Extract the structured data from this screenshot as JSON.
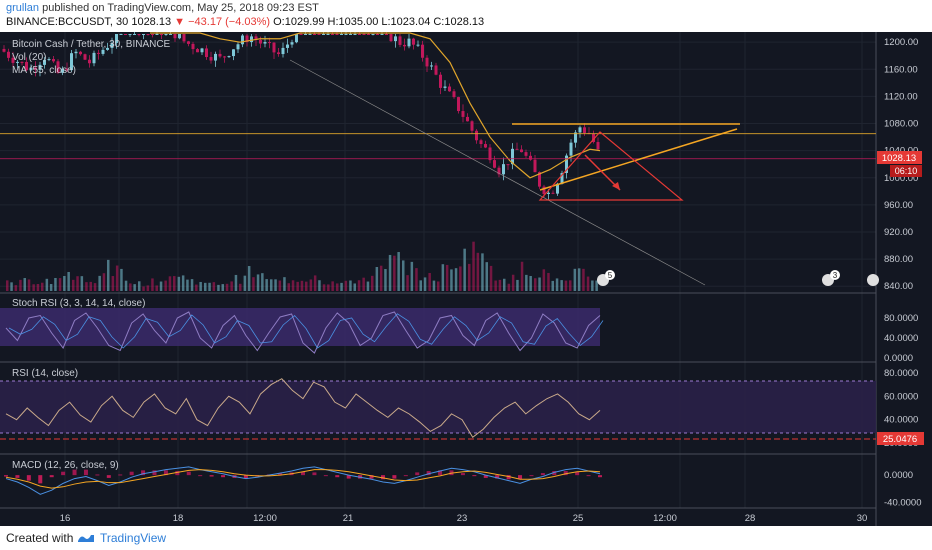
{
  "header": {
    "user": "grullan",
    "published": "published on TradingView.com, May 25, 2018 09:23 EST",
    "symbol": "BINANCE:BCCUSDT, 30",
    "last": "1028.13",
    "arrow": "▼",
    "change": "−43.17 (−4.03%)",
    "ohlc": "O:1029.99 H:1035.00 L:1023.04 C:1028.13"
  },
  "footer": {
    "created_with": "Created with",
    "brand": "TradingView"
  },
  "colors": {
    "bg": "#131722",
    "grid": "#2a2e39",
    "up": "#7ec8d8",
    "down": "#c2185b",
    "ma": "#e0a52b",
    "orange_line": "#f5a623",
    "red_line": "#e53935",
    "indicator_fill": "#3b2a6b",
    "stoch": "#8e7cc3",
    "macd": "#4a90e2",
    "macd_signal": "#f5a623"
  },
  "chart_data": [
    {
      "type": "candlestick",
      "title": "Bitcoin Cash / Tether, 30, BINANCE",
      "indicators": [
        "Vol (20)",
        "MA (55, close)"
      ],
      "ylim": [
        830,
        1215
      ],
      "y_ticks": [
        "1200.00",
        "1160.00",
        "1120.00",
        "1080.00",
        "1040.00",
        "1000.00",
        "960.00",
        "920.00",
        "880.00",
        "840.00"
      ],
      "x_ticks": [
        "16",
        "18",
        "12:00",
        "21",
        "23",
        "25",
        "12:00",
        "28",
        "30"
      ],
      "price_label": "1028.13",
      "countdown_label": "06:10",
      "resistance_levels": [
        1065,
        1028
      ],
      "annotations": {
        "event_markers": [
          "5",
          "3"
        ]
      },
      "ohlc_path": [
        [
          0,
          1190
        ],
        [
          15,
          1175
        ],
        [
          30,
          1160
        ],
        [
          45,
          1180
        ],
        [
          60,
          1150
        ],
        [
          75,
          1185
        ],
        [
          90,
          1170
        ],
        [
          110,
          1200
        ],
        [
          130,
          1230
        ],
        [
          150,
          1215
        ],
        [
          170,
          1220
        ],
        [
          185,
          1200
        ],
        [
          200,
          1190
        ],
        [
          220,
          1175
        ],
        [
          235,
          1195
        ],
        [
          250,
          1210
        ],
        [
          265,
          1195
        ],
        [
          280,
          1180
        ],
        [
          295,
          1215
        ],
        [
          310,
          1230
        ],
        [
          330,
          1240
        ],
        [
          350,
          1235
        ],
        [
          370,
          1225
        ],
        [
          385,
          1215
        ],
        [
          400,
          1200
        ],
        [
          410,
          1200
        ],
        [
          420,
          1185
        ],
        [
          430,
          1165
        ],
        [
          440,
          1140
        ],
        [
          450,
          1120
        ],
        [
          460,
          1100
        ],
        [
          470,
          1075
        ],
        [
          480,
          1050
        ],
        [
          490,
          1035
        ],
        [
          500,
          1010
        ],
        [
          510,
          1030
        ],
        [
          520,
          1045
        ],
        [
          530,
          1020
        ],
        [
          540,
          990
        ],
        [
          550,
          975
        ],
        [
          560,
          1005
        ],
        [
          570,
          1050
        ],
        [
          580,
          1075
        ],
        [
          590,
          1065
        ],
        [
          600,
          1030
        ]
      ],
      "ma_path": [
        [
          150,
          1230
        ],
        [
          170,
          1245
        ],
        [
          190,
          1240
        ],
        [
          200,
          1225
        ],
        [
          220,
          1205
        ],
        [
          240,
          1200
        ],
        [
          260,
          1205
        ],
        [
          280,
          1205
        ],
        [
          300,
          1215
        ],
        [
          320,
          1225
        ],
        [
          350,
          1235
        ],
        [
          380,
          1238
        ],
        [
          410,
          1225
        ],
        [
          430,
          1205
        ],
        [
          450,
          1170
        ],
        [
          470,
          1110
        ],
        [
          490,
          1060
        ],
        [
          510,
          1025
        ],
        [
          530,
          1000
        ],
        [
          550,
          1012
        ],
        [
          570,
          1030
        ],
        [
          590,
          1042
        ],
        [
          600,
          1040
        ]
      ],
      "volume": [
        12,
        18,
        9,
        14,
        22,
        16,
        11,
        30,
        25,
        15,
        10,
        12,
        20,
        18,
        14,
        9,
        11,
        16,
        24,
        19,
        13,
        15,
        17,
        21,
        12,
        10,
        14,
        18,
        26,
        40,
        35,
        22,
        18,
        28,
        45,
        60,
        38,
        20,
        16,
        30,
        26,
        18,
        12,
        22,
        16
      ]
    },
    {
      "type": "line",
      "title": "Stoch RSI (3, 3, 14, 14, close)",
      "ylim": [
        0,
        100
      ],
      "y_ticks": [
        "80.0000",
        "40.0000",
        "0.0000"
      ],
      "values": [
        60,
        35,
        80,
        85,
        50,
        20,
        75,
        90,
        60,
        25,
        15,
        70,
        88,
        55,
        30,
        80,
        92,
        40,
        20,
        65,
        85,
        45,
        15,
        50,
        82,
        88,
        30,
        10,
        60,
        90,
        70,
        25,
        40,
        85,
        92,
        55,
        20,
        35,
        80,
        85,
        45,
        25,
        75,
        90,
        50,
        15,
        40,
        88,
        70,
        30,
        20,
        65,
        85
      ]
    },
    {
      "type": "line",
      "title": "RSI (14, close)",
      "ylim": [
        15,
        85
      ],
      "y_ticks": [
        "80.0000",
        "60.0000",
        "40.0000",
        "20.0000"
      ],
      "price_label": "25.0476",
      "bands": [
        70,
        30
      ],
      "values": [
        45,
        40,
        50,
        42,
        35,
        48,
        55,
        44,
        38,
        52,
        60,
        48,
        42,
        55,
        62,
        50,
        45,
        58,
        40,
        35,
        50,
        60,
        55,
        45,
        62,
        70,
        75,
        65,
        58,
        72,
        68,
        55,
        50,
        62,
        55,
        48,
        42,
        50,
        45,
        38,
        30,
        35,
        45,
        40,
        25,
        32,
        42,
        50,
        55,
        45,
        52,
        58,
        62,
        55,
        45,
        40,
        48
      ]
    },
    {
      "type": "line",
      "title": "MACD (12, 26, close, 9)",
      "ylim": [
        -45,
        25
      ],
      "y_ticks": [
        "0.0000",
        "-40.0000"
      ],
      "macd": [
        -5,
        -10,
        -18,
        -28,
        -22,
        -12,
        -5,
        -2,
        -8,
        -15,
        -10,
        -3,
        2,
        5,
        8,
        10,
        12,
        8,
        5,
        2,
        -2,
        -5,
        -3,
        0,
        3,
        6,
        10,
        12,
        8,
        4,
        0,
        -3,
        -6,
        -10,
        -12,
        -8,
        -3,
        2,
        6,
        10,
        8,
        5,
        0,
        -4,
        -8,
        -12,
        -6,
        -2,
        4,
        8,
        10,
        6,
        2
      ],
      "signal": [
        -3,
        -6,
        -10,
        -16,
        -19,
        -17,
        -13,
        -10,
        -9,
        -11,
        -11,
        -8,
        -5,
        -2,
        1,
        4,
        7,
        8,
        7,
        5,
        2,
        0,
        -1,
        -1,
        0,
        2,
        5,
        8,
        8,
        7,
        5,
        2,
        -1,
        -4,
        -7,
        -8,
        -7,
        -4,
        -1,
        3,
        5,
        6,
        4,
        1,
        -2,
        -6,
        -6,
        -5,
        -2,
        2,
        5,
        6,
        5
      ]
    }
  ]
}
